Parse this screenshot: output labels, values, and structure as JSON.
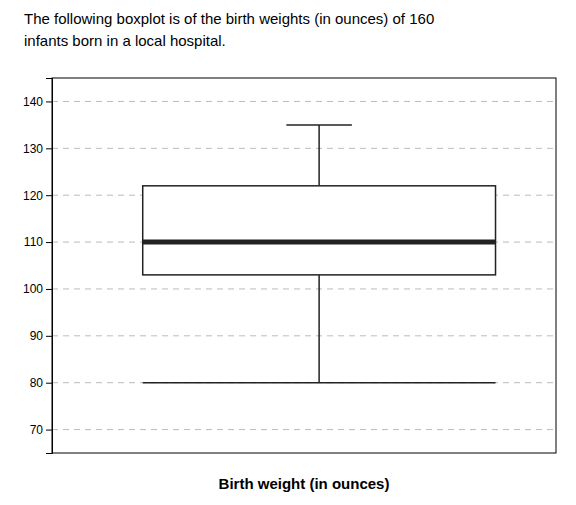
{
  "chart_data": {
    "type": "box",
    "title": [
      "The following boxplot is of the birth weights (in ounces) of 160",
      "infants born in a local hospital."
    ],
    "xlabel": "Birth weight (in ounces)",
    "low": 80,
    "q1": 103,
    "median": 110,
    "q3": 122,
    "high": 135,
    "ylim": [
      65,
      145
    ],
    "yticks": [
      70,
      80,
      90,
      100,
      110,
      120,
      130,
      140
    ],
    "grid": true
  }
}
